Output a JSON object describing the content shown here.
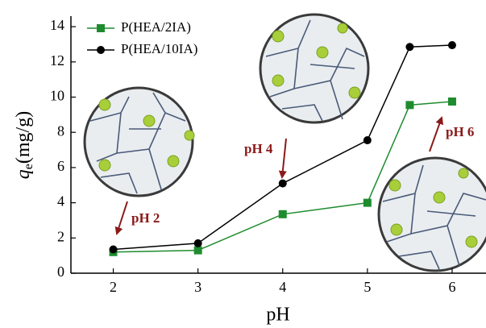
{
  "chart_data": {
    "type": "line",
    "xlabel": "pH",
    "ylabel": [
      "q",
      "e",
      "(mg/g)"
    ],
    "x": [
      2,
      3,
      4,
      5,
      5.5,
      6
    ],
    "series": [
      {
        "name": "P(HEA/2IA)",
        "color": "#1e8c2e",
        "marker": "square",
        "values": [
          1.2,
          1.3,
          3.35,
          4.0,
          9.55,
          9.75
        ]
      },
      {
        "name": "P(HEA/10IA)",
        "color": "#000000",
        "marker": "circle",
        "values": [
          1.35,
          1.7,
          5.1,
          7.55,
          12.85,
          12.95
        ]
      }
    ],
    "xlim": [
      1.5,
      6.4
    ],
    "ylim": [
      0,
      14.6
    ],
    "xticks": [
      2,
      3,
      4,
      5,
      6
    ],
    "yticks": [
      0,
      2,
      4,
      6,
      8,
      10,
      12,
      14
    ],
    "legend": "upper left",
    "annotations": [
      "pH 2",
      "pH 4",
      "pH 6"
    ]
  }
}
